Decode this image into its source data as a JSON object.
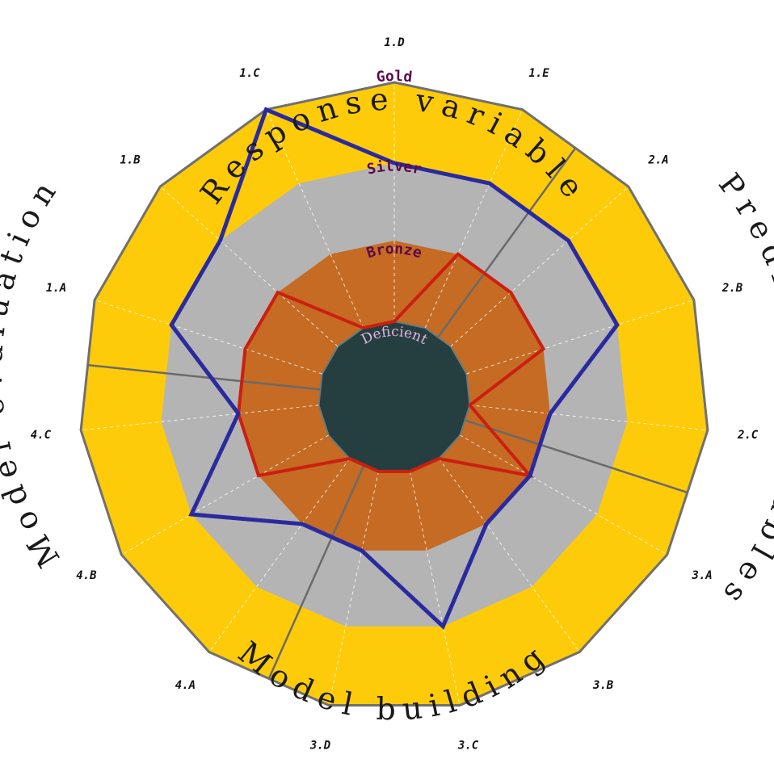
{
  "chart_data": {
    "type": "radar",
    "levels": [
      "Deficient",
      "Bronze",
      "Silver",
      "Gold"
    ],
    "axes": [
      "1.A",
      "1.B",
      "1.C",
      "1.D",
      "1.E",
      "2.A",
      "2.B",
      "2.C",
      "3.A",
      "3.B",
      "3.C",
      "3.D",
      "4.A",
      "4.B",
      "4.C"
    ],
    "sections": [
      {
        "title": "Response variable",
        "axes": [
          "1.A",
          "1.B",
          "1.C",
          "1.D",
          "1.E"
        ]
      },
      {
        "title": "Predictor variables",
        "axes": [
          "2.A",
          "2.B",
          "2.C"
        ]
      },
      {
        "title": "Model building",
        "axes": [
          "3.A",
          "3.B",
          "3.C",
          "3.D"
        ]
      },
      {
        "title": "Model evaluation",
        "axes": [
          "4.A",
          "4.B",
          "4.C"
        ]
      }
    ],
    "scale_max": 4,
    "series": [
      {
        "color": "#2a2aa0",
        "values": [
          3.0,
          3.0,
          4.0,
          3.0,
          3.0,
          3.0,
          3.0,
          2.0,
          2.0,
          2.0,
          3.0,
          2.0,
          2.0,
          3.0,
          2.0
        ]
      },
      {
        "color": "#cc1f10",
        "values": [
          2.0,
          2.0,
          1.0,
          1.0,
          2.0,
          2.0,
          2.0,
          1.0,
          2.0,
          1.0,
          1.0,
          1.0,
          1.0,
          2.0,
          2.0
        ]
      }
    ],
    "ring_colors": [
      "#253f40",
      "#c56b24",
      "#b4b4b4",
      "#fecb0a"
    ]
  }
}
